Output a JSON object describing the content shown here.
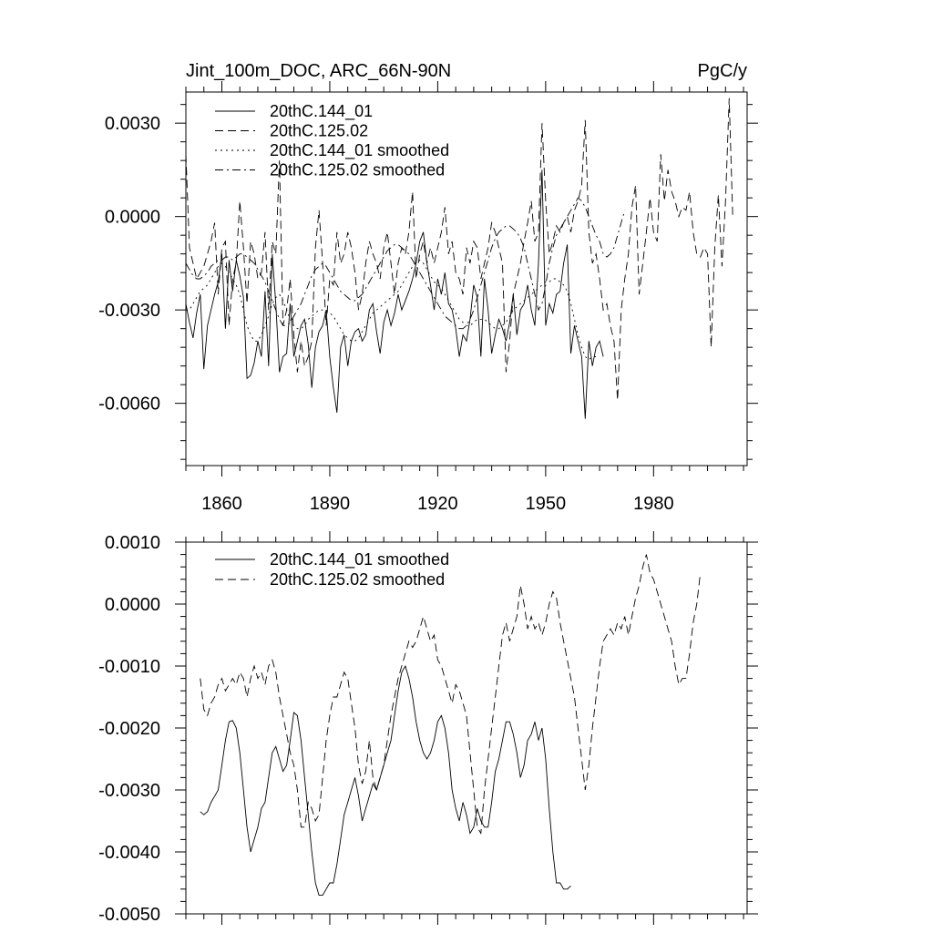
{
  "chart_data": [
    {
      "type": "line",
      "title": "Jint_100m_DOC, ARC_66N-90N",
      "units": "PgC/y",
      "xlabel": "",
      "ylabel": "",
      "xlim": [
        1850,
        2006
      ],
      "ylim": [
        -0.008,
        0.004
      ],
      "x_ticks": [
        1860,
        1890,
        1920,
        1950,
        1980
      ],
      "x_tick_labels": [
        "1860",
        "1890",
        "1920",
        "1950",
        "1980"
      ],
      "y_ticks": [
        0.003,
        0.0,
        -0.003,
        -0.006
      ],
      "y_tick_labels": [
        "0.0030",
        "0.0000",
        "-0.0030",
        "-0.0060"
      ],
      "legend": [
        "20thC.144_01",
        "20thC.125.02",
        "20thC.144_01 smoothed",
        "20thC.125.02 smoothed"
      ],
      "series": [
        {
          "name": "20thC.144_01",
          "style": "solid",
          "x_start": 1850,
          "values": [
            -0.0028,
            -0.0034,
            -0.0039,
            -0.0031,
            -0.0025,
            -0.0049,
            -0.0035,
            -0.003,
            -0.0025,
            -0.0021,
            -0.0012,
            -0.0036,
            -0.0014,
            -0.0024,
            -0.0014,
            -0.0019,
            -0.0026,
            -0.0052,
            -0.0051,
            -0.0047,
            -0.004,
            -0.0045,
            -0.0024,
            -0.0048,
            -0.0012,
            -0.0028,
            -0.005,
            -0.0045,
            -0.0044,
            -0.0028,
            -0.0045,
            -0.004,
            -0.0035,
            -0.0033,
            -0.0041,
            -0.0055,
            -0.0042,
            -0.0037,
            -0.0035,
            -0.003,
            -0.0045,
            -0.0055,
            -0.0063,
            -0.0042,
            -0.0038,
            -0.0048,
            -0.004,
            -0.0037,
            -0.0036,
            -0.004,
            -0.0038,
            -0.003,
            -0.0028,
            -0.0037,
            -0.0044,
            -0.0034,
            -0.003,
            -0.0035,
            -0.0031,
            -0.0025,
            -0.003,
            -0.0027,
            -0.0024,
            -0.002,
            -0.0015,
            -0.0008,
            -0.0005,
            -0.0015,
            -0.0022,
            -0.003,
            -0.002,
            -0.0025,
            -0.0018,
            -0.0028,
            -0.003,
            -0.0036,
            -0.0045,
            -0.0038,
            -0.004,
            -0.0033,
            -0.0022,
            -0.0026,
            -0.0045,
            -0.002,
            -0.003,
            -0.0044,
            -0.0038,
            -0.0033,
            -0.0036,
            -0.004,
            -0.0034,
            -0.0025,
            -0.0038,
            -0.003,
            -0.0028,
            -0.0022,
            -0.003,
            -0.0035,
            -0.0015,
            0.0015,
            -0.0035,
            -0.0028,
            -0.0031,
            -0.0025,
            -0.0024,
            -0.0015,
            -0.0009,
            -0.0044,
            -0.0035,
            -0.004,
            -0.0045,
            -0.0065,
            -0.004,
            -0.0048,
            -0.0042,
            -0.004,
            -0.0045
          ]
        },
        {
          "name": "20thC.125.02",
          "style": "dashed",
          "x_start": 1850,
          "values": [
            0.002,
            -0.001,
            -0.0015,
            -0.002,
            -0.0018,
            -0.0016,
            -0.0012,
            -0.0008,
            -0.0002,
            -0.0025,
            -0.001,
            -0.0008,
            -0.0035,
            -0.002,
            -0.0015,
            0.0005,
            -0.001,
            -0.0028,
            -0.0008,
            -0.0012,
            -0.002,
            -0.0018,
            -0.0005,
            -0.003,
            -0.0008,
            -0.0012,
            0.0018,
            -0.0035,
            -0.003,
            -0.002,
            -0.0038,
            -0.005,
            -0.004,
            -0.0048,
            -0.0045,
            -0.004,
            -0.001,
            0.0002,
            -0.0015,
            -0.0035,
            -0.002,
            -0.0022,
            -0.0005,
            -0.0015,
            -0.0012,
            -0.0005,
            -0.001,
            -0.0018,
            -0.003,
            -0.0025,
            -0.0015,
            -0.0008,
            -0.0012,
            -0.0015,
            -0.002,
            -0.001,
            -0.0005,
            -0.0015,
            -0.0025,
            -0.0015,
            -0.001,
            -0.0012,
            -0.0005,
            0.0008,
            -0.002,
            -0.0012,
            -0.0008,
            -0.0015,
            -0.001,
            -0.0015,
            -0.001,
            -0.0005,
            0.0003,
            -0.0012,
            -0.0008,
            -0.0018,
            -0.002,
            -0.0025,
            -0.001,
            -0.0015,
            -0.0008,
            -0.001,
            -0.002,
            -0.0015,
            -0.001,
            -0.0002,
            -0.0005,
            -0.001,
            -0.0015,
            -0.005,
            -0.004,
            -0.0025,
            -0.002,
            -0.0015,
            -0.0008,
            -0.0002,
            0.0005,
            -0.0008,
            -0.0005,
            0.003,
            0.0005,
            -0.0012,
            -0.0008,
            -0.0003,
            -0.0005,
            -0.0002,
            0.0,
            -0.0005,
            0.0002,
            0.0005,
            0.001,
            0.0031,
            -0.0005,
            -0.0015,
            -0.0012,
            -0.002,
            -0.003,
            -0.0028,
            -0.0035,
            -0.004,
            -0.0059,
            -0.003,
            -0.002,
            -0.0012,
            0.0003,
            0.001,
            -0.0025,
            -0.0015,
            -0.0005,
            0.0006,
            -0.0005,
            -0.0008,
            0.002,
            0.0005,
            0.0015,
            0.0008,
            0.0005,
            0.0,
            0.0003,
            0.0002,
            0.0008,
            -0.0005,
            -0.0012,
            -0.0013,
            -0.001,
            -0.0012,
            -0.0042,
            -0.001,
            0.0007,
            -0.0016,
            0.0005,
            0.0038,
            0.0
          ]
        },
        {
          "name": "20thC.144_01 smoothed",
          "style": "dotted",
          "x_start": 1850,
          "values": [
            -0.003,
            -0.003,
            -0.0028,
            -0.0026,
            -0.0024,
            -0.0023,
            -0.0022,
            -0.002,
            -0.0018,
            -0.0016,
            -0.0015,
            -0.0016,
            -0.0018,
            -0.002,
            -0.0022,
            -0.0025,
            -0.003,
            -0.0035,
            -0.0038,
            -0.004,
            -0.004,
            -0.0038,
            -0.0035,
            -0.0032,
            -0.0028,
            -0.0026,
            -0.0025,
            -0.0027,
            -0.003,
            -0.0033,
            -0.0035,
            -0.0036,
            -0.0036,
            -0.0035,
            -0.0033,
            -0.0032,
            -0.0031,
            -0.003,
            -0.003,
            -0.003,
            -0.0031,
            -0.0032,
            -0.0034,
            -0.0036,
            -0.0038,
            -0.0039,
            -0.004,
            -0.004,
            -0.0039,
            -0.0037,
            -0.0035,
            -0.0033,
            -0.0031,
            -0.003,
            -0.0029,
            -0.0028,
            -0.0027,
            -0.0026,
            -0.0025,
            -0.0024,
            -0.0022,
            -0.002,
            -0.0018,
            -0.0016,
            -0.0015,
            -0.0014,
            -0.0015,
            -0.0017,
            -0.0019,
            -0.0021,
            -0.0022,
            -0.0023,
            -0.0025,
            -0.0027,
            -0.0029,
            -0.0031,
            -0.0033,
            -0.0034,
            -0.0035,
            -0.0035,
            -0.0034,
            -0.0033,
            -0.0033,
            -0.0033,
            -0.0034,
            -0.0035,
            -0.0036,
            -0.0036,
            -0.0035,
            -0.0034,
            -0.0032,
            -0.003,
            -0.0029,
            -0.0028,
            -0.0027,
            -0.0026,
            -0.0025,
            -0.0024,
            -0.0023,
            -0.0022,
            -0.0021,
            -0.0021,
            -0.002,
            -0.002,
            -0.0021,
            -0.0022,
            -0.0024,
            -0.0028,
            -0.0033,
            -0.0038,
            -0.0042,
            -0.0045,
            -0.0046,
            -0.0045,
            -0.0045
          ]
        },
        {
          "name": "20thC.125.02 smoothed",
          "style": "dashdot",
          "x_start": 1850,
          "values": [
            -0.0015,
            -0.0017,
            -0.0019,
            -0.002,
            -0.002,
            -0.0019,
            -0.0018,
            -0.0016,
            -0.0015,
            -0.0014,
            -0.0014,
            -0.0013,
            -0.0013,
            -0.0014,
            -0.0013,
            -0.0012,
            -0.0012,
            -0.0013,
            -0.0014,
            -0.0015,
            -0.0017,
            -0.0019,
            -0.0021,
            -0.0024,
            -0.0027,
            -0.003,
            -0.0033,
            -0.0035,
            -0.0035,
            -0.0034,
            -0.0032,
            -0.003,
            -0.0028,
            -0.0025,
            -0.0022,
            -0.0019,
            -0.0017,
            -0.0016,
            -0.0015,
            -0.0016,
            -0.0018,
            -0.002,
            -0.0022,
            -0.0024,
            -0.0025,
            -0.0026,
            -0.0027,
            -0.0027,
            -0.0026,
            -0.0025,
            -0.0023,
            -0.0021,
            -0.0019,
            -0.0017,
            -0.0015,
            -0.0013,
            -0.0011,
            -0.001,
            -0.0009,
            -0.0009,
            -0.001,
            -0.0011,
            -0.0012,
            -0.0014,
            -0.0016,
            -0.0018,
            -0.002,
            -0.0022,
            -0.0024,
            -0.0026,
            -0.0028,
            -0.003,
            -0.0032,
            -0.0033,
            -0.0034,
            -0.0035,
            -0.0036,
            -0.0036,
            -0.0035,
            -0.0033,
            -0.003,
            -0.0026,
            -0.0022,
            -0.0018,
            -0.0014,
            -0.001,
            -0.0007,
            -0.0005,
            -0.0004,
            -0.0003,
            -0.0003,
            -0.0004,
            -0.0005,
            -0.0007,
            -0.001,
            -0.0015,
            -0.002,
            -0.0025,
            -0.003,
            -0.0028,
            -0.0022,
            -0.0015,
            -0.001,
            -0.0006,
            -0.0004,
            -0.0002,
            0.0,
            0.0002,
            0.0004,
            0.0006,
            0.0005,
            0.0003,
            0.0,
            -0.0003,
            -0.0006,
            -0.0008,
            -0.0012,
            -0.0013,
            -0.0012,
            -0.001,
            -0.0006,
            -0.0002,
            0.0002
          ]
        }
      ]
    },
    {
      "type": "line",
      "title": "",
      "xlabel": "",
      "ylabel": "",
      "xlim": [
        1850,
        2006
      ],
      "ylim": [
        -0.005,
        0.001
      ],
      "x_ticks": [
        1860,
        1890,
        1920,
        1950,
        1980
      ],
      "x_tick_labels": [],
      "y_ticks": [
        0.001,
        0.0,
        -0.001,
        -0.002,
        -0.003,
        -0.004,
        -0.005
      ],
      "y_tick_labels": [
        "0.0010",
        "0.0000",
        "-0.0010",
        "-0.0020",
        "-0.0030",
        "-0.0040",
        "-0.0050"
      ],
      "legend": [
        "20thC.144_01 smoothed",
        "20thC.125.02 smoothed"
      ],
      "series": [
        {
          "name": "20thC.144_01 smoothed",
          "style": "solid",
          "x_start": 1854,
          "values": [
            -0.00335,
            -0.0034,
            -0.00335,
            -0.0032,
            -0.0031,
            -0.003,
            -0.0026,
            -0.0022,
            -0.0019,
            -0.00188,
            -0.002,
            -0.0024,
            -0.003,
            -0.0036,
            -0.004,
            -0.0038,
            -0.0036,
            -0.0033,
            -0.0032,
            -0.0028,
            -0.0024,
            -0.0023,
            -0.0025,
            -0.0027,
            -0.0026,
            -0.0022,
            -0.00175,
            -0.0018,
            -0.0022,
            -0.0028,
            -0.0034,
            -0.004,
            -0.0045,
            -0.0047,
            -0.0047,
            -0.0046,
            -0.0045,
            -0.0045,
            -0.0042,
            -0.0038,
            -0.0034,
            -0.0032,
            -0.003,
            -0.0028,
            -0.0031,
            -0.0035,
            -0.0033,
            -0.0031,
            -0.0029,
            -0.003,
            -0.0028,
            -0.0026,
            -0.0024,
            -0.0022,
            -0.0018,
            -0.0014,
            -0.0011,
            -0.001,
            -0.0012,
            -0.0015,
            -0.0019,
            -0.0022,
            -0.0024,
            -0.0025,
            -0.0024,
            -0.0022,
            -0.0019,
            -0.0018,
            -0.002,
            -0.0024,
            -0.003,
            -0.0033,
            -0.0035,
            -0.0032,
            -0.0034,
            -0.0037,
            -0.0036,
            -0.0033,
            -0.0035,
            -0.0036,
            -0.0036,
            -0.0032,
            -0.0027,
            -0.0025,
            -0.0022,
            -0.0019,
            -0.0019,
            -0.0021,
            -0.0024,
            -0.0028,
            -0.0026,
            -0.0022,
            -0.0021,
            -0.0019,
            -0.0022,
            -0.002,
            -0.0025,
            -0.0033,
            -0.004,
            -0.0045,
            -0.0045,
            -0.0046,
            -0.0046,
            -0.00455
          ]
        },
        {
          "name": "20thC.125.02 smoothed",
          "style": "dashed",
          "x_start": 1854,
          "values": [
            -0.0012,
            -0.0017,
            -0.0018,
            -0.0016,
            -0.0015,
            -0.0013,
            -0.0012,
            -0.0014,
            -0.0013,
            -0.0012,
            -0.0013,
            -0.0011,
            -0.0012,
            -0.0015,
            -0.0012,
            -0.001,
            -0.0012,
            -0.0011,
            -0.0013,
            -0.001,
            -0.0009,
            -0.0011,
            -0.0015,
            -0.0018,
            -0.0021,
            -0.0024,
            -0.0026,
            -0.003,
            -0.0036,
            -0.0036,
            -0.0032,
            -0.0033,
            -0.0035,
            -0.0034,
            -0.0028,
            -0.0022,
            -0.0018,
            -0.0015,
            -0.0015,
            -0.0013,
            -0.0011,
            -0.0012,
            -0.0016,
            -0.002,
            -0.0026,
            -0.0029,
            -0.0027,
            -0.0022,
            -0.0028,
            -0.003,
            -0.0028,
            -0.0026,
            -0.0022,
            -0.0018,
            -0.0015,
            -0.0012,
            -0.001,
            -0.0008,
            -0.0006,
            -0.0007,
            -0.0006,
            -0.0004,
            -0.0002,
            -0.0004,
            -0.0006,
            -0.0005,
            -0.0009,
            -0.001,
            -0.0012,
            -0.0014,
            -0.0016,
            -0.0013,
            -0.0014,
            -0.0016,
            -0.0018,
            -0.0024,
            -0.003,
            -0.0036,
            -0.0037,
            -0.003,
            -0.0025,
            -0.002,
            -0.0015,
            -0.001,
            -0.0005,
            -0.0003,
            -0.0006,
            -0.0004,
            -0.0002,
            0.0003,
            0.0,
            -0.0004,
            -0.0002,
            -0.0004,
            -0.0003,
            -0.0005,
            -0.0003,
            0.0,
            0.0002,
            0.0001,
            -0.0003,
            -0.0006,
            -0.0009,
            -0.0012,
            -0.0015,
            -0.002,
            -0.0025,
            -0.003,
            -0.0026,
            -0.002,
            -0.0015,
            -0.001,
            -0.0006,
            -0.0005,
            -0.0004,
            -0.0005,
            -0.0003,
            -0.0004,
            -0.0002,
            -0.0005,
            -0.0002,
            0.0001,
            0.0003,
            0.0006,
            0.0008,
            0.0005,
            0.0004,
            0.0002,
            0.0,
            -0.0002,
            -0.0004,
            -0.0006,
            -0.001,
            -0.0013,
            -0.0012,
            -0.0012,
            -0.0008,
            -0.0003,
            0.0,
            0.0005
          ]
        }
      ]
    }
  ]
}
